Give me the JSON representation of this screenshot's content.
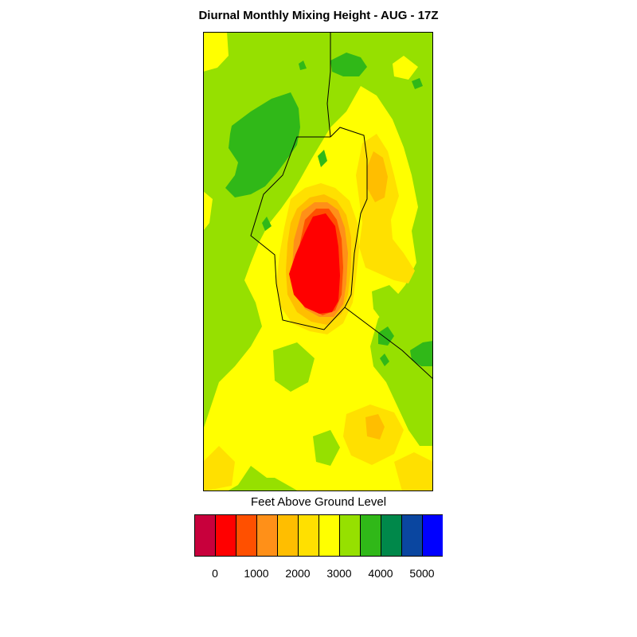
{
  "title": "Diurnal Monthly Mixing Height - AUG - 17Z",
  "colorbar": {
    "label": "Feet Above Ground Level",
    "colors": [
      "#c8003c",
      "#ff0000",
      "#ff5000",
      "#ff9018",
      "#ffbe00",
      "#ffe000",
      "#ffff00",
      "#96e000",
      "#30b818",
      "#00884a",
      "#0a46a0",
      "#0000ff"
    ],
    "tick_labels": [
      "0",
      "1000",
      "2000",
      "3000",
      "4000",
      "5000"
    ]
  },
  "palette": {
    "red": "#ff0000",
    "redorange": "#ff5000",
    "orange": "#ff9018",
    "amber": "#ffbe00",
    "gold": "#ffe000",
    "yellow": "#ffff00",
    "lightgreen": "#96e000",
    "green": "#30b818",
    "boundary": "#000000"
  }
}
